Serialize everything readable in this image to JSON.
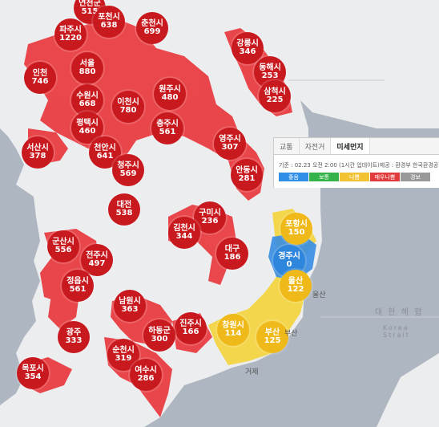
{
  "colors": {
    "bad": "#dd2a2a",
    "verybad": "#ca1b1b",
    "normal": "#eec82a",
    "good": "#3d8fdd",
    "sea": "#aeb6c1",
    "land": "#ecedef"
  },
  "markers": [
    {
      "name": "연천군",
      "value": "515",
      "level": "verybad"
    },
    {
      "name": "포천시",
      "value": "638",
      "level": "verybad"
    },
    {
      "name": "파주시",
      "value": "1220",
      "level": "verybad"
    },
    {
      "name": "춘천시",
      "value": "699",
      "level": "verybad"
    },
    {
      "name": "강릉시",
      "value": "346",
      "level": "verybad"
    },
    {
      "name": "인천",
      "value": "746",
      "level": "verybad"
    },
    {
      "name": "서울",
      "value": "880",
      "level": "verybad"
    },
    {
      "name": "동해시",
      "value": "253",
      "level": "verybad"
    },
    {
      "name": "수원시",
      "value": "668",
      "level": "verybad"
    },
    {
      "name": "원주시",
      "value": "480",
      "level": "verybad"
    },
    {
      "name": "이천시",
      "value": "780",
      "level": "verybad"
    },
    {
      "name": "삼척시",
      "value": "225",
      "level": "verybad"
    },
    {
      "name": "평택시",
      "value": "460",
      "level": "verybad"
    },
    {
      "name": "충주시",
      "value": "561",
      "level": "verybad"
    },
    {
      "name": "영주시",
      "value": "307",
      "level": "verybad"
    },
    {
      "name": "서산시",
      "value": "378",
      "level": "verybad"
    },
    {
      "name": "천안시",
      "value": "641",
      "level": "verybad"
    },
    {
      "name": "청주시",
      "value": "569",
      "level": "verybad"
    },
    {
      "name": "안동시",
      "value": "281",
      "level": "verybad"
    },
    {
      "name": "대전",
      "value": "538",
      "level": "verybad"
    },
    {
      "name": "구미시",
      "value": "236",
      "level": "verybad"
    },
    {
      "name": "포항시",
      "value": "150",
      "level": "normal"
    },
    {
      "name": "김천시",
      "value": "344",
      "level": "verybad"
    },
    {
      "name": "군산시",
      "value": "556",
      "level": "verybad"
    },
    {
      "name": "전주시",
      "value": "497",
      "level": "verybad"
    },
    {
      "name": "대구",
      "value": "186",
      "level": "verybad"
    },
    {
      "name": "경주시",
      "value": "0",
      "level": "good"
    },
    {
      "name": "정읍시",
      "value": "561",
      "level": "verybad"
    },
    {
      "name": "울산",
      "value": "122",
      "level": "normal"
    },
    {
      "name": "남원시",
      "value": "363",
      "level": "verybad"
    },
    {
      "name": "진주시",
      "value": "166",
      "level": "verybad"
    },
    {
      "name": "창원시",
      "value": "114",
      "level": "normal"
    },
    {
      "name": "광주",
      "value": "333",
      "level": "verybad"
    },
    {
      "name": "하동군",
      "value": "300",
      "level": "verybad"
    },
    {
      "name": "부산",
      "value": "125",
      "level": "normal"
    },
    {
      "name": "순천시",
      "value": "319",
      "level": "verybad"
    },
    {
      "name": "목포시",
      "value": "354",
      "level": "verybad"
    },
    {
      "name": "여수시",
      "value": "286",
      "level": "verybad"
    }
  ],
  "panel": {
    "tabs": [
      "교통",
      "자전거",
      "미세먼지"
    ],
    "active_tab": 2,
    "time_text": "기준 : 02.23 오전 2:00 (1시간 업데이트)",
    "source_text": "제공 : 환경부 한국환경공단",
    "legend": [
      {
        "label": "좋음",
        "color": "#2f8fe6"
      },
      {
        "label": "보통",
        "color": "#33b34a"
      },
      {
        "label": "나쁨",
        "color": "#f2c233"
      },
      {
        "label": "매우나쁨",
        "color": "#e23b3b"
      },
      {
        "label": "경보",
        "color": "#999999"
      }
    ]
  },
  "labels": {
    "busan_suffix": "부산",
    "ulsan_suffix": "울산",
    "yellow_sea": "대 한 해 협",
    "strait": "Korea Strait",
    "geoje": "거제"
  }
}
